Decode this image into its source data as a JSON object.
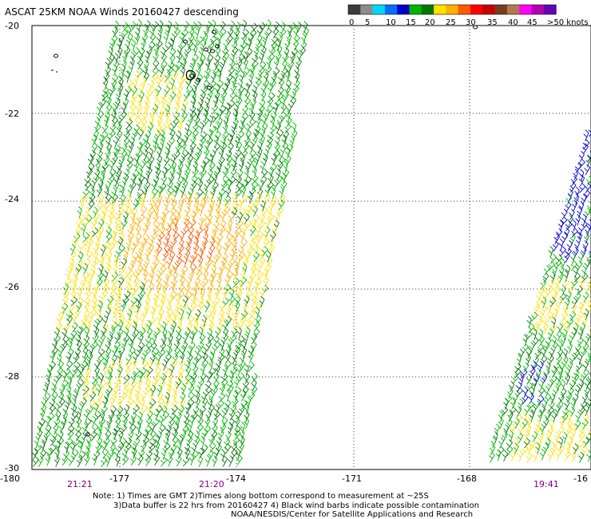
{
  "title": "ASCAT 25KM NOAA Winds 20160427 descending",
  "legend": {
    "colors": [
      "#3c3c3c",
      "#8c8c8c",
      "#00d8f8",
      "#0070f8",
      "#0000c8",
      "#00b400",
      "#007800",
      "#ffe000",
      "#ffb000",
      "#ff5a00",
      "#ff0000",
      "#c80000",
      "#7a3c1e",
      "#b47850",
      "#ff00ff",
      "#b400b4",
      "#6a00b4"
    ],
    "labels": [
      "0",
      "5",
      "10",
      "15",
      "20",
      "25",
      "30",
      "35",
      "40",
      "45",
      ">50 knots"
    ]
  },
  "axes": {
    "y_labels": [
      "-20",
      "-22",
      "-24",
      "-26",
      "-28",
      "-30"
    ],
    "x_labels": [
      "-180",
      "-177",
      "-174",
      "-171",
      "-168",
      "-16"
    ],
    "time_labels": [
      "21:21",
      "21:20",
      "19:41"
    ],
    "xlim": [
      -180,
      -164.5
    ],
    "ylim": [
      -30,
      -20
    ]
  },
  "notes": [
    "Note: 1) Times are GMT 2)Times along bottom correspond to measurement at ~25S",
    "3)Data buffer is 22 hrs from 20160427 4) Black wind barbs indicate possible contamination",
    "NOAA/NESDIS/Center for Satellite Applications and Research"
  ],
  "swaths": [
    {
      "name": "swath-west",
      "time": "21:21 / 21:20"
    },
    {
      "name": "swath-east",
      "time": "19:41"
    }
  ]
}
